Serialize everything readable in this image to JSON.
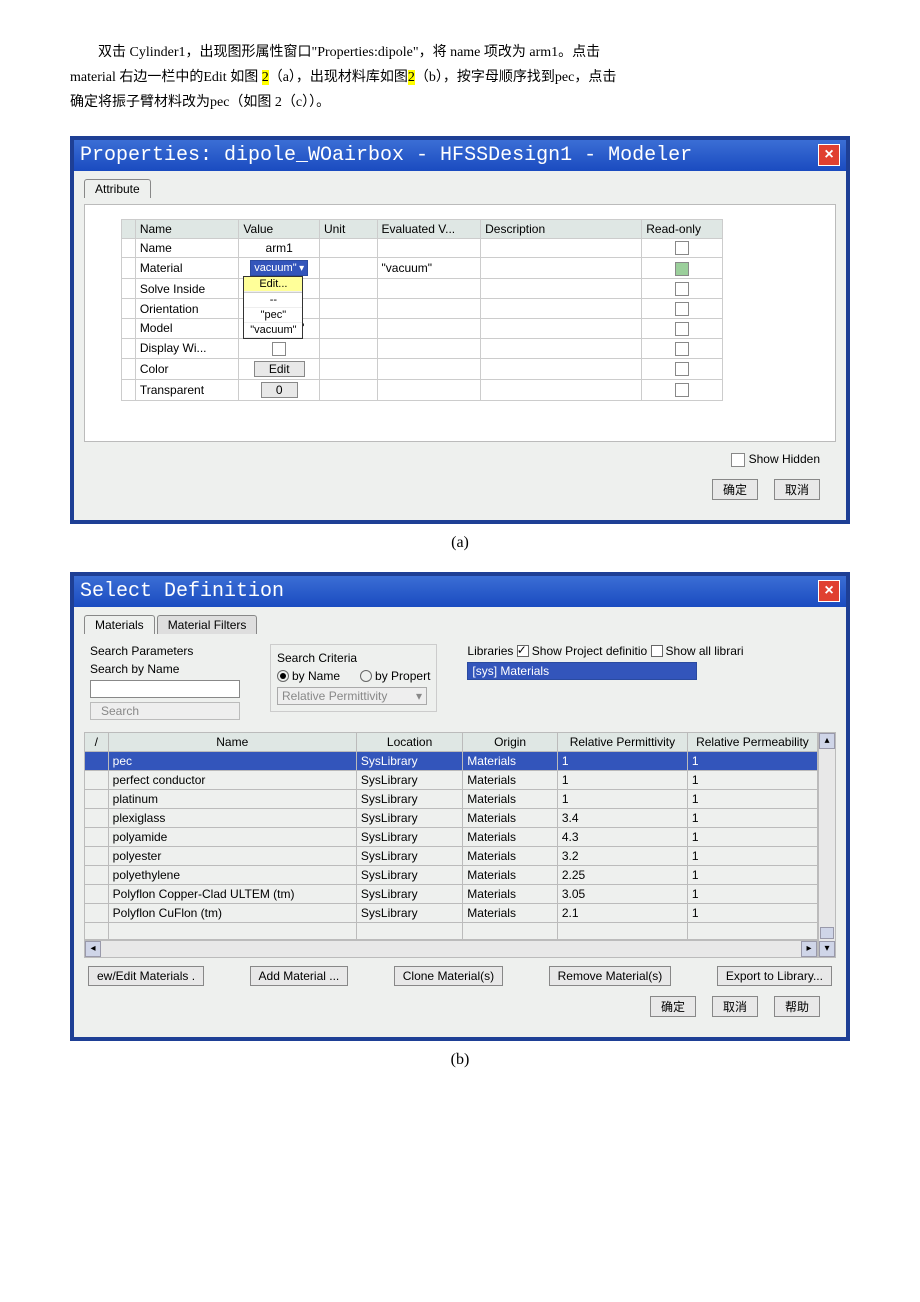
{
  "intro": {
    "line1_a": "双击 Cylinder1，出现图形属性窗口\"Properties:dipole\"，将 name 项改为 arm1。点击",
    "line2_a": "material 右边一栏中的Edit 如图 ",
    "line2_hl": "2",
    "line2_b": "（a），出现材料库如图",
    "line2_hl2": "2",
    "line2_c": "（b），按字母顺序找到pec，点击",
    "line3": "确定将振子臂材料改为pec（如图 2（c））。"
  },
  "dialogA": {
    "title": "Properties: dipole_WOairbox - HFSSDesign1 - Modeler",
    "tab": "Attribute",
    "headers": [
      "Name",
      "Value",
      "Unit",
      "Evaluated V...",
      "Description",
      "Read-only"
    ],
    "rows": [
      {
        "name": "Name",
        "value": "arm1",
        "eval": "",
        "ro": false
      },
      {
        "name": "Material",
        "value": "vacuum",
        "eval": "\"vacuum\"",
        "ro": true,
        "dd": true
      },
      {
        "name": "Solve Inside",
        "value": "Edit...",
        "eval": "",
        "ro": false,
        "editlink": true
      },
      {
        "name": "Orientation",
        "value": "\"pec\"",
        "eval": "",
        "ro": false
      },
      {
        "name": "Model",
        "value": "\"vacuum\"",
        "eval": "",
        "ro": false,
        "cbafter": true
      },
      {
        "name": "Display Wi...",
        "value": "",
        "eval": "",
        "ro": false,
        "cb": true
      },
      {
        "name": "Color",
        "value": "Edit",
        "eval": "",
        "ro": false,
        "btn": true
      },
      {
        "name": "Transparent",
        "value": "0",
        "eval": "",
        "ro": false,
        "btn": true
      }
    ],
    "show_hidden": "Show Hidden",
    "ok": "确定",
    "cancel": "取消"
  },
  "captionA": "(a)",
  "dialogB": {
    "title": "Select Definition",
    "tabs": [
      "Materials",
      "Material Filters"
    ],
    "search_params": "Search Parameters",
    "search_by_name": "Search by Name",
    "search_btn": "Search",
    "search_criteria": "Search Criteria",
    "by_name": "by Name",
    "by_prop": "by Propert",
    "rel_perm": "Relative Permittivity",
    "libraries": "Libraries",
    "show_proj": "Show Project definitio",
    "show_all": "Show all librari",
    "sys_mat": "[sys] Materials",
    "cols": [
      "/",
      "Name",
      "Location",
      "Origin",
      "Relative Permittivity",
      "Relative Permeability"
    ],
    "rows": [
      {
        "name": "pec",
        "loc": "SysLibrary",
        "orig": "Materials",
        "rp": "1",
        "rm": "1",
        "sel": true
      },
      {
        "name": "perfect conductor",
        "loc": "SysLibrary",
        "orig": "Materials",
        "rp": "1",
        "rm": "1"
      },
      {
        "name": "platinum",
        "loc": "SysLibrary",
        "orig": "Materials",
        "rp": "1",
        "rm": "1"
      },
      {
        "name": "plexiglass",
        "loc": "SysLibrary",
        "orig": "Materials",
        "rp": "3.4",
        "rm": "1"
      },
      {
        "name": "polyamide",
        "loc": "SysLibrary",
        "orig": "Materials",
        "rp": "4.3",
        "rm": "1"
      },
      {
        "name": "polyester",
        "loc": "SysLibrary",
        "orig": "Materials",
        "rp": "3.2",
        "rm": "1"
      },
      {
        "name": "polyethylene",
        "loc": "SysLibrary",
        "orig": "Materials",
        "rp": "2.25",
        "rm": "1"
      },
      {
        "name": "Polyflon Copper-Clad ULTEM (tm)",
        "loc": "SysLibrary",
        "orig": "Materials",
        "rp": "3.05",
        "rm": "1"
      },
      {
        "name": "Polyflon CuFlon (tm)",
        "loc": "SysLibrary",
        "orig": "Materials",
        "rp": "2.1",
        "rm": "1"
      }
    ],
    "buttons": [
      "ew/Edit Materials .",
      "Add Material ...",
      "Clone Material(s)",
      "Remove Material(s)",
      "Export to Library..."
    ],
    "ok": "确定",
    "cancel": "取消",
    "help": "帮助"
  },
  "captionB": "(b)"
}
